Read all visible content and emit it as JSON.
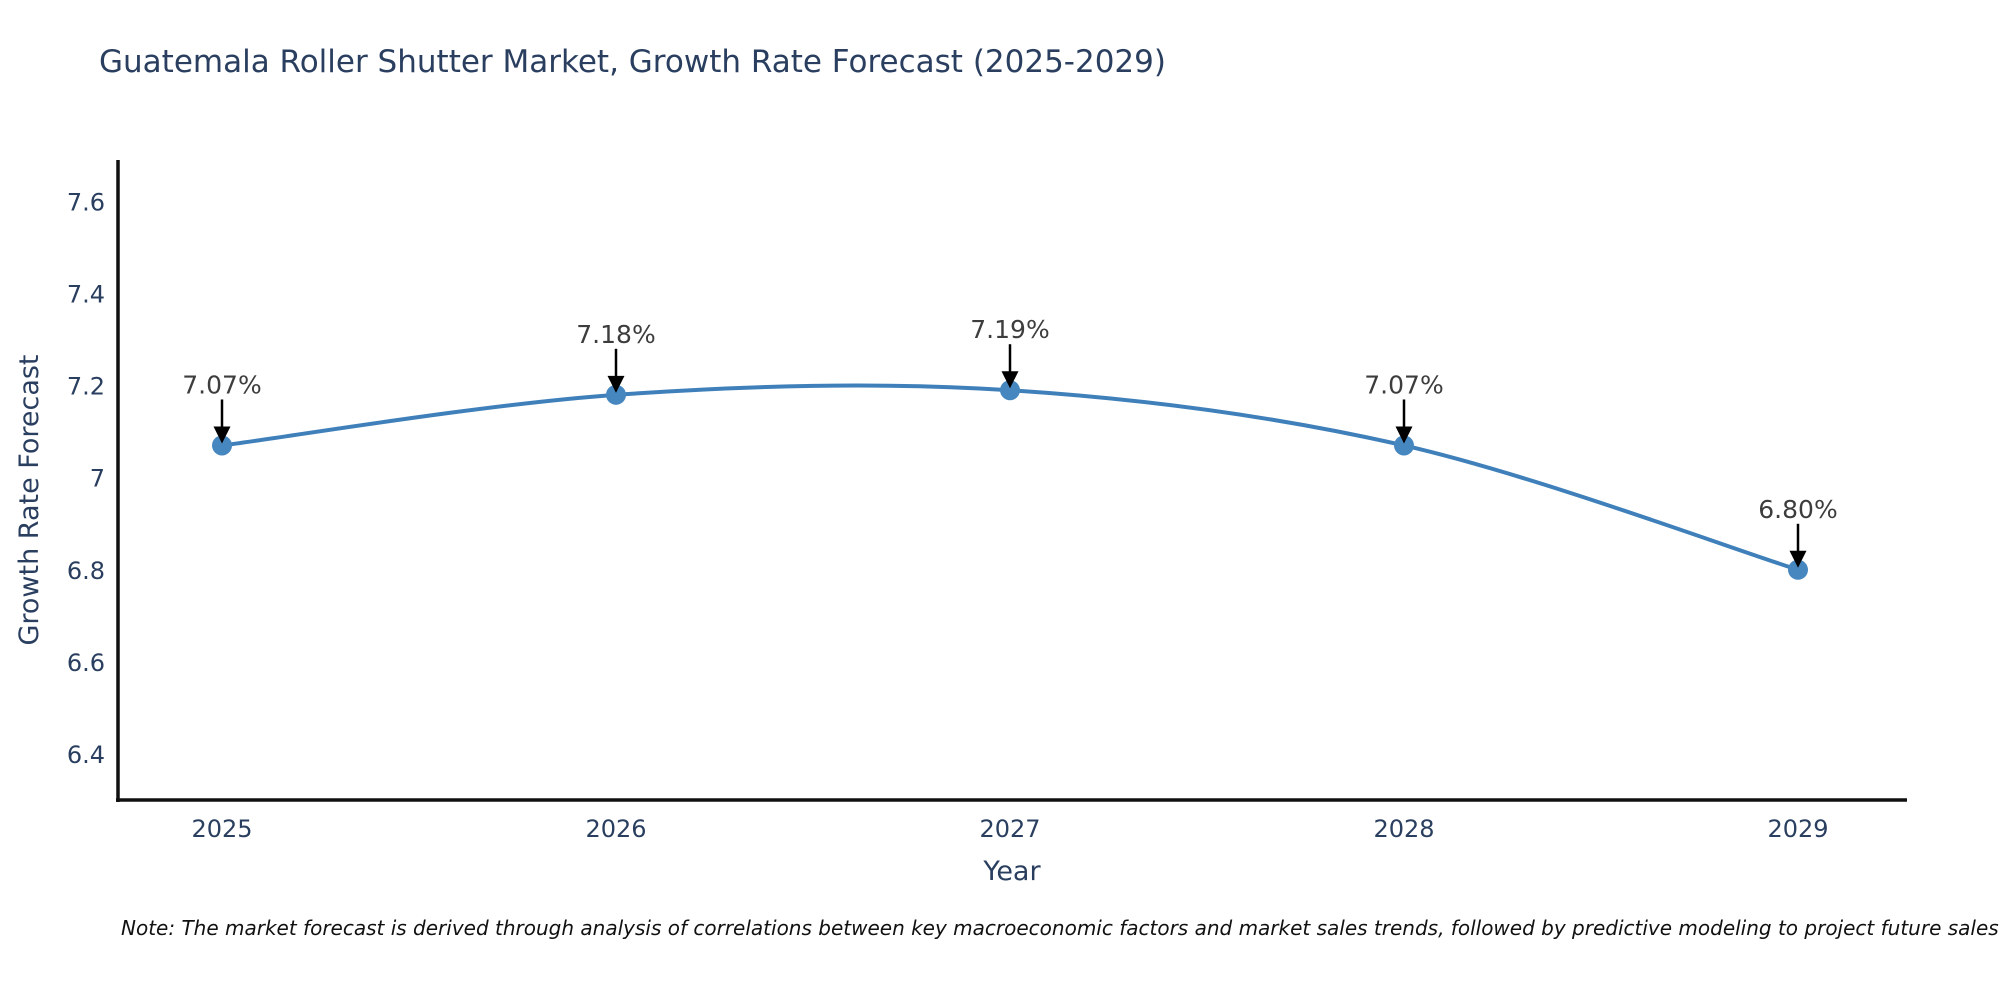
{
  "page": {
    "note": "Note: The market forecast is derived through analysis of correlations between key macroeconomic factors and market sales trends, followed by predictive modeling to project future sales"
  },
  "chart_data": {
    "type": "line",
    "title": "Guatemala Roller Shutter Market, Growth Rate Forecast (2025-2029)",
    "xlabel": "Year",
    "ylabel": "Growth Rate Forecast",
    "categories": [
      "2025",
      "2026",
      "2027",
      "2028",
      "2029"
    ],
    "values": [
      7.07,
      7.18,
      7.19,
      7.07,
      6.8
    ],
    "point_labels": [
      "7.07%",
      "7.18%",
      "7.19%",
      "7.07%",
      "6.80%"
    ],
    "yticks": [
      6.4,
      6.6,
      6.8,
      7,
      7.2,
      7.4,
      7.6
    ],
    "ytick_labels": [
      "6.4",
      "6.6",
      "6.8",
      "7",
      "7.2",
      "7.4",
      "7.6"
    ],
    "ylim": [
      6.3,
      7.69
    ],
    "grid": false,
    "legend": null,
    "line_shape": "spline",
    "colors": {
      "line": "#3f80ba",
      "marker": "#4787c0",
      "arrow": "#000000",
      "annotation_text": "#3d3d3d",
      "axis": "#101010",
      "text": "#2a3f5f"
    }
  }
}
